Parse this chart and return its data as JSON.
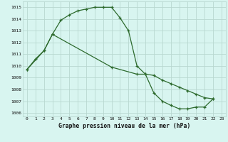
{
  "line1_x": [
    0,
    1,
    2,
    3,
    4,
    5,
    6,
    7,
    8,
    9,
    10,
    11,
    12,
    13,
    14,
    15,
    16,
    17,
    18,
    19,
    20,
    21,
    22
  ],
  "line1_y": [
    1009.7,
    1010.6,
    1011.3,
    1012.7,
    1013.9,
    1014.35,
    1014.7,
    1014.85,
    1015.0,
    1015.0,
    1015.0,
    1014.1,
    1013.0,
    1010.0,
    1009.3,
    1007.7,
    1007.0,
    1006.65,
    1006.35,
    1006.35,
    1006.5,
    1006.5,
    1007.2
  ],
  "line2_x": [
    0,
    2,
    3,
    10,
    13,
    14,
    15,
    16,
    17,
    18,
    19,
    20,
    21,
    22
  ],
  "line2_y": [
    1009.7,
    1011.3,
    1012.7,
    1009.9,
    1009.3,
    1009.3,
    1009.2,
    1008.8,
    1008.5,
    1008.2,
    1007.9,
    1007.6,
    1007.3,
    1007.2
  ],
  "line_color": "#2d6a2d",
  "bg_color": "#d8f5f0",
  "grid_color": "#b8d8d0",
  "xlabel": "Graphe pression niveau de la mer (hPa)",
  "ylim_min": 1005.7,
  "ylim_max": 1015.5,
  "xlim_min": -0.5,
  "xlim_max": 23.5,
  "yticks": [
    1006,
    1007,
    1008,
    1009,
    1010,
    1011,
    1012,
    1013,
    1014,
    1015
  ],
  "xticks": [
    0,
    1,
    2,
    3,
    4,
    5,
    6,
    7,
    8,
    9,
    10,
    11,
    12,
    13,
    14,
    15,
    16,
    17,
    18,
    19,
    20,
    21,
    22,
    23
  ]
}
